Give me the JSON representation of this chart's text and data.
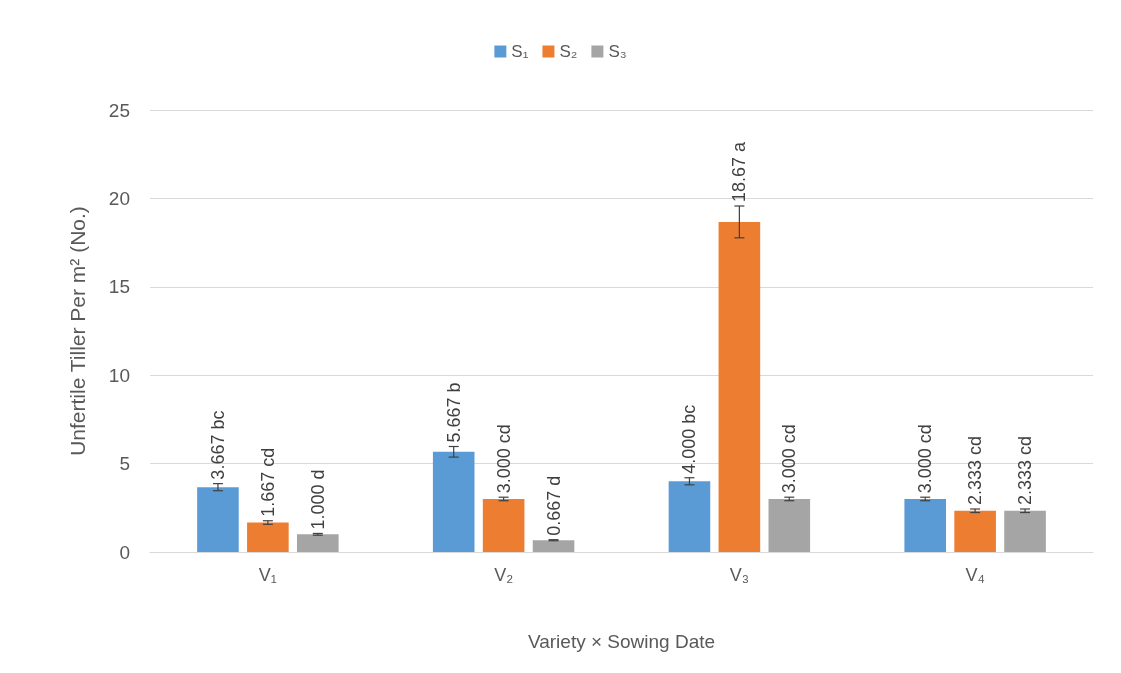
{
  "chart_data": {
    "type": "bar",
    "ylabel": "Unfertile Tiller Per m² (No.)",
    "xlabel": "Variety × Sowing Date",
    "categories": [
      "V₁",
      "V₂",
      "V₃",
      "V₄"
    ],
    "series": [
      {
        "name": "S₁",
        "color": "#5b9bd5",
        "values": [
          3.667,
          5.667,
          4.0,
          3.0
        ],
        "errors": [
          0.2,
          0.3,
          0.2,
          0.1
        ],
        "value_labels": [
          "3.667 bc",
          "5.667 b",
          "4.000 bc",
          "3.000 cd"
        ]
      },
      {
        "name": "S₂",
        "color": "#ed7d31",
        "values": [
          1.667,
          3.0,
          18.67,
          2.333
        ],
        "errors": [
          0.1,
          0.1,
          0.9,
          0.1
        ],
        "value_labels": [
          "1.667 cd",
          "3.000 cd",
          "18.67 a",
          "2.333 cd"
        ]
      },
      {
        "name": "S₃",
        "color": "#a5a5a5",
        "values": [
          1.0,
          0.667,
          3.0,
          2.333
        ],
        "errors": [
          0.05,
          0.03,
          0.1,
          0.1
        ],
        "value_labels": [
          "1.000 d",
          "0.667 d",
          "3.000 cd",
          "2.333 cd"
        ]
      }
    ],
    "ylim": [
      0,
      25
    ],
    "yticks": [
      0,
      5,
      10,
      15,
      20,
      25
    ],
    "grid": "y",
    "legend": "top"
  }
}
